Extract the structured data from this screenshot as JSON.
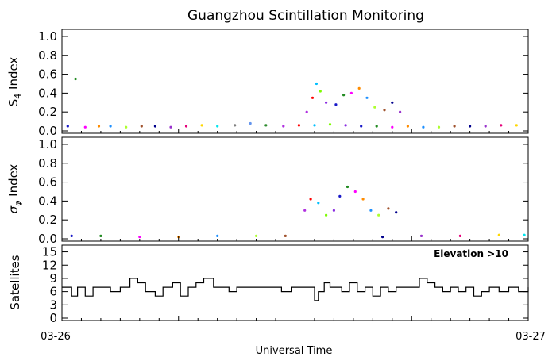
{
  "chart_data": {
    "type": "scatter",
    "title": "Guangzhou Scintillation Monitoring",
    "xlabel": "Universal Time",
    "x_tick_labels": [
      "03-26",
      "03-27"
    ],
    "xlim": [
      0,
      24
    ],
    "x_unit": "hours UT since 03-26 00:00",
    "palette": [
      "#1919c8",
      "#00008c",
      "#2e8b2e",
      "#228b22",
      "#9932cc",
      "#b030e0",
      "#ff00ff",
      "#e6007a",
      "#ff0000",
      "#ff8c00",
      "#ffd700",
      "#00bfff",
      "#1e90ff",
      "#00e5ee",
      "#7cfc00",
      "#adff2f",
      "#808080",
      "#8a2be2",
      "#a0522d",
      "#6495ed"
    ],
    "panels": [
      {
        "id": "s4",
        "ylabel_main": "S",
        "ylabel_sub": "4",
        "ylabel_tail": "Index",
        "ylim": [
          0,
          1.05
        ],
        "yticks": [
          0,
          0.2,
          0.4,
          0.6,
          0.8,
          1.0
        ],
        "ytick_labels": [
          "0.0",
          "0.2",
          "0.4",
          "0.6",
          "0.8",
          "1.0"
        ],
        "series": [
          {
            "x": [
              0.3,
              0.7,
              1.2,
              1.9,
              2.5,
              3.3,
              4.1,
              4.8,
              5.6,
              6.4,
              7.2,
              8.0,
              8.9,
              9.7,
              10.5,
              11.4,
              12.2,
              13.0,
              13.8,
              14.6,
              15.4,
              16.2,
              17.0,
              17.8,
              18.6,
              19.4,
              20.2,
              21.0,
              21.8,
              22.6,
              23.4
            ],
            "y": [
              0.05,
              0.55,
              0.04,
              0.05,
              0.05,
              0.04,
              0.05,
              0.05,
              0.04,
              0.05,
              0.06,
              0.05,
              0.06,
              0.08,
              0.06,
              0.05,
              0.06,
              0.06,
              0.07,
              0.06,
              0.05,
              0.05,
              0.04,
              0.05,
              0.04,
              0.04,
              0.05,
              0.05,
              0.05,
              0.06,
              0.06
            ]
          },
          {
            "x": [
              12.6,
              12.9,
              13.1,
              13.3,
              13.6,
              14.1,
              14.5,
              14.9,
              15.3,
              15.7,
              16.1,
              16.6,
              17.0,
              17.4
            ],
            "y": [
              0.2,
              0.35,
              0.5,
              0.42,
              0.3,
              0.28,
              0.38,
              0.4,
              0.45,
              0.35,
              0.25,
              0.22,
              0.3,
              0.2
            ]
          }
        ]
      },
      {
        "id": "sigma_phi",
        "ylabel_main": "σ",
        "ylabel_sub": "φ",
        "ylabel_tail": "Index",
        "ylim": [
          0,
          1.05
        ],
        "yticks": [
          0,
          0.2,
          0.4,
          0.6,
          0.8,
          1.0
        ],
        "ytick_labels": [
          "0.0",
          "0.2",
          "0.4",
          "0.6",
          "0.8",
          "1.0"
        ],
        "series": [
          {
            "x": [
              0.5,
              2.0,
              4.0,
              6.0,
              8.0,
              10.0,
              11.5,
              16.5,
              18.5,
              20.5,
              22.5,
              23.8
            ],
            "y": [
              0.03,
              0.03,
              0.02,
              0.02,
              0.03,
              0.03,
              0.03,
              0.02,
              0.03,
              0.03,
              0.04,
              0.04
            ]
          },
          {
            "x": [
              12.5,
              12.8,
              13.2,
              13.6,
              14.0,
              14.3,
              14.7,
              15.1,
              15.5,
              15.9,
              16.3,
              16.8,
              17.2
            ],
            "y": [
              0.3,
              0.42,
              0.38,
              0.25,
              0.3,
              0.45,
              0.55,
              0.5,
              0.42,
              0.3,
              0.25,
              0.32,
              0.28
            ]
          }
        ]
      },
      {
        "id": "satellites",
        "ylabel_main": "Satellites",
        "ylim": [
          0,
          16
        ],
        "yticks": [
          0,
          3,
          6,
          9,
          12,
          15
        ],
        "ytick_labels": [
          "0",
          "3",
          "6",
          "9",
          "12",
          "15"
        ],
        "annotation": "Elevation >10",
        "steps": {
          "x": [
            0,
            0.5,
            0.8,
            1.2,
            1.6,
            2.0,
            2.5,
            3.0,
            3.5,
            3.9,
            4.3,
            4.8,
            5.2,
            5.7,
            6.1,
            6.5,
            6.9,
            7.3,
            7.8,
            8.2,
            8.6,
            9.0,
            9.4,
            9.8,
            10.2,
            10.8,
            11.3,
            11.8,
            12.2,
            12.6,
            13.0,
            13.2,
            13.5,
            13.8,
            14.1,
            14.4,
            14.8,
            15.2,
            15.6,
            16.0,
            16.4,
            16.8,
            17.2,
            17.6,
            18.0,
            18.4,
            18.8,
            19.2,
            19.6,
            20.0,
            20.4,
            20.8,
            21.2,
            21.6,
            22.0,
            22.5,
            23.0,
            23.5,
            24.0
          ],
          "y": [
            7,
            5,
            7,
            5,
            7,
            7,
            6,
            7,
            9,
            8,
            6,
            5,
            7,
            8,
            5,
            7,
            8,
            9,
            7,
            7,
            6,
            7,
            7,
            7,
            7,
            7,
            6,
            7,
            7,
            7,
            4,
            6,
            8,
            7,
            7,
            6,
            8,
            6,
            7,
            5,
            7,
            6,
            7,
            7,
            7,
            9,
            8,
            7,
            6,
            7,
            6,
            7,
            5,
            6,
            7,
            6,
            7,
            6,
            7
          ]
        }
      }
    ]
  }
}
